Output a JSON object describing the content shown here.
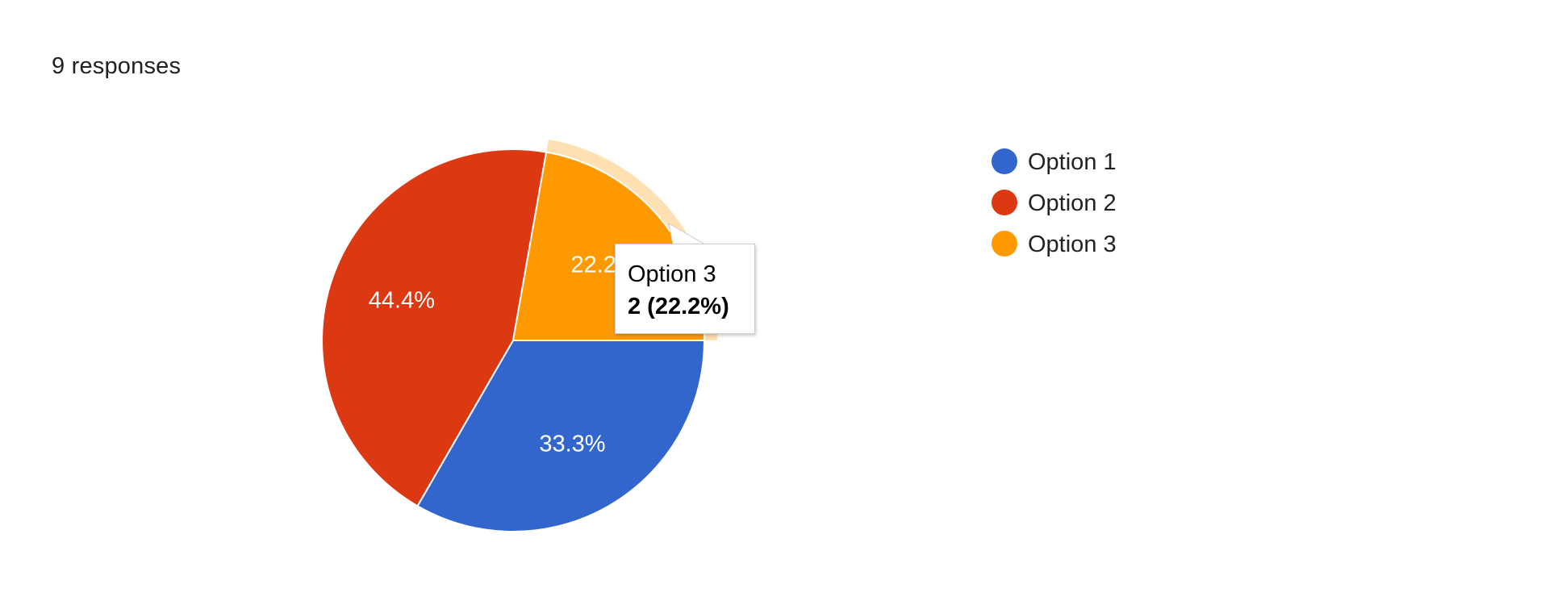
{
  "summary": {
    "responses_text": "9 responses"
  },
  "chart_data": {
    "type": "pie",
    "categories": [
      "Option 1",
      "Option 2",
      "Option 3"
    ],
    "values": [
      3,
      4,
      2
    ],
    "percent_labels": [
      "33.3%",
      "44.4%",
      "22.2%"
    ],
    "colors": [
      "#3366cc",
      "#dc3912",
      "#ff9900"
    ],
    "legend_position": "right",
    "highlighted_slice": "Option 3",
    "tooltip": {
      "title": "Option 3",
      "value": "2 (22.2%)"
    }
  }
}
